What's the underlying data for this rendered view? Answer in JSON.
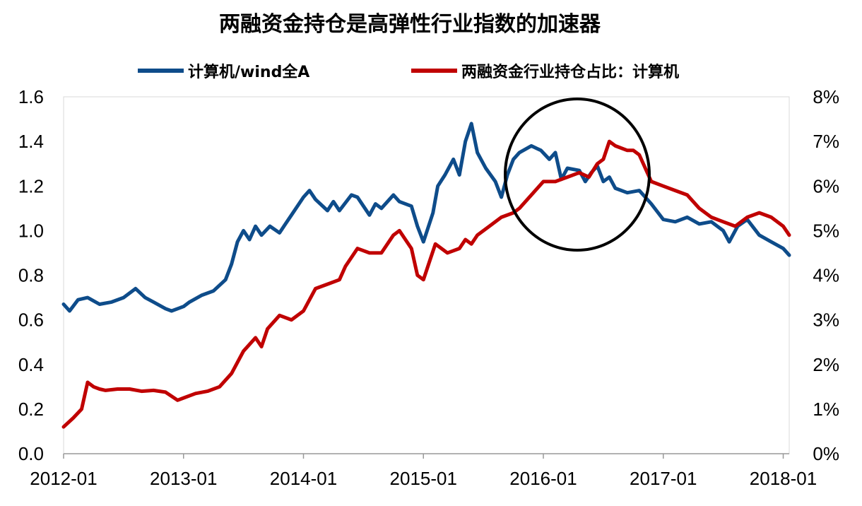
{
  "chart_data": {
    "type": "line",
    "title": "两融资金持仓是高弹性行业指数的加速器",
    "xlabel": "",
    "ylabel": "",
    "x_tick_labels": [
      "2012-01",
      "2013-01",
      "2014-01",
      "2015-01",
      "2016-01",
      "2017-01",
      "2018-01"
    ],
    "x_range": [
      "2012-01",
      "2018-01"
    ],
    "y_left": {
      "ticks": [
        "0.0",
        "0.2",
        "0.4",
        "0.6",
        "0.8",
        "1.0",
        "1.2",
        "1.4",
        "1.6"
      ],
      "ylim": [
        0,
        1.6
      ]
    },
    "y_right": {
      "ticks": [
        "0%",
        "1%",
        "2%",
        "3%",
        "4%",
        "5%",
        "6%",
        "7%",
        "8%"
      ],
      "ylim": [
        0,
        8
      ]
    },
    "legend_position": "top",
    "grid": false,
    "annotation": "circle highlighting 2016 divergence",
    "series": [
      {
        "name": "计算机/wind全A",
        "axis": "left",
        "color": "#0e4c8a",
        "x": [
          2012.0,
          2012.05,
          2012.12,
          2012.2,
          2012.3,
          2012.4,
          2012.5,
          2012.6,
          2012.68,
          2012.75,
          2012.85,
          2012.9,
          2013.0,
          2013.05,
          2013.15,
          2013.25,
          2013.35,
          2013.4,
          2013.45,
          2013.5,
          2013.55,
          2013.6,
          2013.65,
          2013.72,
          2013.8,
          2013.85,
          2013.9,
          2014.0,
          2014.05,
          2014.1,
          2014.2,
          2014.25,
          2014.3,
          2014.4,
          2014.45,
          2014.55,
          2014.6,
          2014.65,
          2014.75,
          2014.8,
          2014.9,
          2014.95,
          2015.0,
          2015.08,
          2015.12,
          2015.18,
          2015.25,
          2015.3,
          2015.35,
          2015.4,
          2015.45,
          2015.52,
          2015.6,
          2015.65,
          2015.7,
          2015.75,
          2015.8,
          2015.9,
          2015.98,
          2016.05,
          2016.1,
          2016.15,
          2016.2,
          2016.3,
          2016.35,
          2016.4,
          2016.45,
          2016.5,
          2016.55,
          2016.6,
          2016.7,
          2016.8,
          2016.9,
          2017.0,
          2017.1,
          2017.2,
          2017.3,
          2017.4,
          2017.5,
          2017.55,
          2017.62,
          2017.7,
          2017.8,
          2017.9,
          2018.0,
          2018.05
        ],
        "values": [
          0.67,
          0.64,
          0.69,
          0.7,
          0.67,
          0.68,
          0.7,
          0.74,
          0.7,
          0.68,
          0.65,
          0.64,
          0.66,
          0.68,
          0.71,
          0.73,
          0.78,
          0.85,
          0.95,
          1.0,
          0.96,
          1.02,
          0.98,
          1.02,
          0.99,
          1.03,
          1.07,
          1.15,
          1.18,
          1.14,
          1.09,
          1.13,
          1.09,
          1.16,
          1.15,
          1.07,
          1.12,
          1.1,
          1.16,
          1.13,
          1.11,
          1.02,
          0.95,
          1.08,
          1.2,
          1.25,
          1.32,
          1.25,
          1.4,
          1.48,
          1.35,
          1.28,
          1.22,
          1.15,
          1.25,
          1.32,
          1.35,
          1.38,
          1.36,
          1.32,
          1.35,
          1.23,
          1.28,
          1.27,
          1.22,
          1.26,
          1.29,
          1.22,
          1.24,
          1.19,
          1.17,
          1.18,
          1.12,
          1.05,
          1.04,
          1.06,
          1.03,
          1.04,
          1.0,
          0.95,
          1.02,
          1.05,
          0.98,
          0.95,
          0.92,
          0.89
        ]
      },
      {
        "name": "两融资金行业持仓占比：计算机",
        "axis": "right",
        "color": "#c00000",
        "x": [
          2012.0,
          2012.08,
          2012.15,
          2012.2,
          2012.25,
          2012.3,
          2012.35,
          2012.45,
          2012.55,
          2012.65,
          2012.75,
          2012.85,
          2012.95,
          2013.0,
          2013.1,
          2013.2,
          2013.3,
          2013.4,
          2013.5,
          2013.6,
          2013.65,
          2013.7,
          2013.8,
          2013.9,
          2014.0,
          2014.1,
          2014.2,
          2014.3,
          2014.35,
          2014.45,
          2014.55,
          2014.65,
          2014.75,
          2014.8,
          2014.9,
          2014.95,
          2015.0,
          2015.05,
          2015.1,
          2015.2,
          2015.3,
          2015.35,
          2015.4,
          2015.45,
          2015.55,
          2015.65,
          2015.75,
          2015.8,
          2015.9,
          2016.0,
          2016.1,
          2016.2,
          2016.3,
          2016.38,
          2016.45,
          2016.5,
          2016.55,
          2016.6,
          2016.7,
          2016.75,
          2016.8,
          2016.9,
          2017.0,
          2017.1,
          2017.2,
          2017.3,
          2017.4,
          2017.5,
          2017.6,
          2017.7,
          2017.8,
          2017.9,
          2018.0,
          2018.05
        ],
        "values": [
          0.6,
          0.8,
          1.0,
          1.6,
          1.5,
          1.45,
          1.42,
          1.45,
          1.45,
          1.4,
          1.42,
          1.38,
          1.2,
          1.25,
          1.35,
          1.4,
          1.5,
          1.8,
          2.3,
          2.6,
          2.4,
          2.8,
          3.1,
          3.0,
          3.2,
          3.7,
          3.8,
          3.9,
          4.2,
          4.6,
          4.5,
          4.5,
          4.9,
          5.0,
          4.6,
          4.0,
          3.9,
          4.3,
          4.7,
          4.5,
          4.6,
          4.8,
          4.7,
          4.9,
          5.1,
          5.3,
          5.4,
          5.5,
          5.8,
          6.1,
          6.1,
          6.2,
          6.3,
          6.2,
          6.5,
          6.6,
          7.0,
          6.9,
          6.8,
          6.8,
          6.7,
          6.1,
          6.0,
          5.9,
          5.8,
          5.5,
          5.3,
          5.2,
          5.1,
          5.3,
          5.4,
          5.3,
          5.1,
          4.9
        ]
      }
    ]
  }
}
